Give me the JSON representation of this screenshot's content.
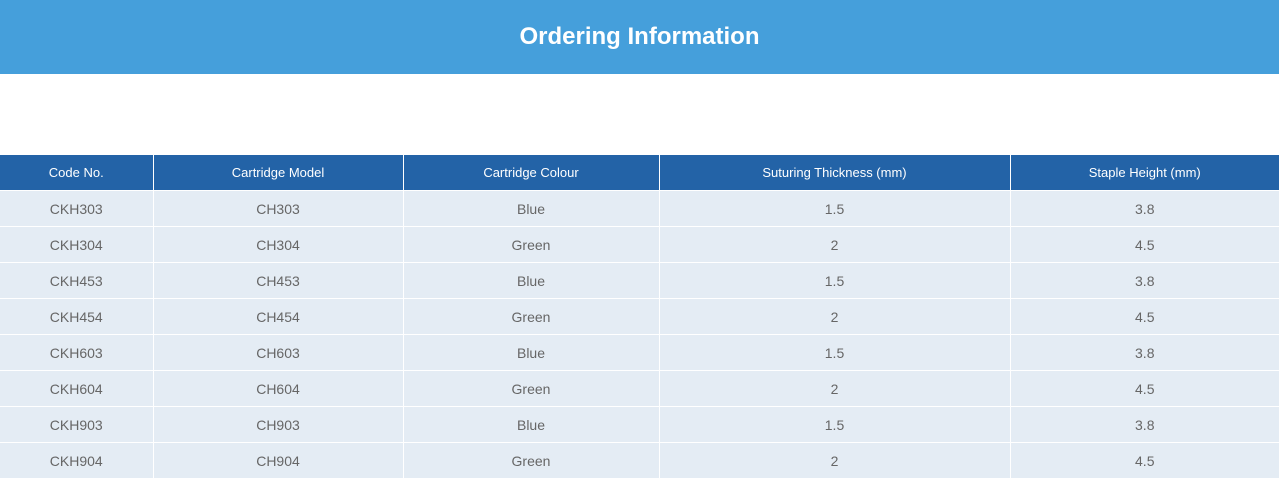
{
  "title": "Ordering Information",
  "columns": [
    "Code No.",
    "Cartridge Model",
    "Cartridge Colour",
    "Suturing Thickness (mm)",
    "Staple Height (mm)"
  ],
  "rows": [
    [
      "CKH303",
      "CH303",
      "Blue",
      "1.5",
      "3.8"
    ],
    [
      "CKH304",
      "CH304",
      "Green",
      "2",
      "4.5"
    ],
    [
      "CKH453",
      "CH453",
      "Blue",
      "1.5",
      "3.8"
    ],
    [
      "CKH454",
      "CH454",
      "Green",
      "2",
      "4.5"
    ],
    [
      "CKH603",
      "CH603",
      "Blue",
      "1.5",
      "3.8"
    ],
    [
      "CKH604",
      "CH604",
      "Green",
      "2",
      "4.5"
    ],
    [
      "CKH903",
      "CH903",
      "Blue",
      "1.5",
      "3.8"
    ],
    [
      "CKH904",
      "CH904",
      "Green",
      "2",
      "4.5"
    ]
  ]
}
